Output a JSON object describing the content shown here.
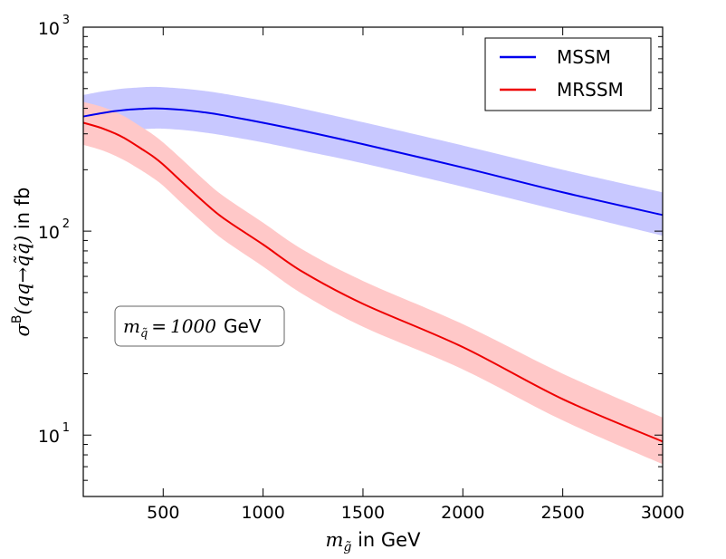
{
  "chart_data": {
    "type": "line",
    "xlabel_symbol": "m",
    "xlabel_subscript": "g̃",
    "xlabel_suffix": " in GeV",
    "ylabel_main": "σ",
    "ylabel_superscript": "B",
    "ylabel_process": "(qq→q̃q̃)",
    "ylabel_suffix": " in fb",
    "xlim": [
      100,
      3000
    ],
    "ylim": [
      5,
      1000
    ],
    "yscale": "log",
    "grid": false,
    "legend_position": "top-right",
    "x_ticks": [
      500,
      1000,
      1500,
      2000,
      2500,
      3000
    ],
    "x_tick_labels": [
      "500",
      "1000",
      "1500",
      "2000",
      "2500",
      "3000"
    ],
    "y_ticks": [
      10,
      100,
      1000
    ],
    "y_tick_labels": [
      {
        "base": "10",
        "exp": "1"
      },
      {
        "base": "10",
        "exp": "2"
      },
      {
        "base": "10",
        "exp": "3"
      }
    ],
    "annotation": {
      "symbol": "m",
      "subscript": "q̃",
      "equals": "=",
      "value": "1000",
      "unit": "GeV"
    },
    "x": [
      100,
      200,
      300,
      400,
      450,
      500,
      600,
      700,
      800,
      1000,
      1200,
      1500,
      2000,
      2500,
      3000
    ],
    "series": [
      {
        "name": "MSSM",
        "color": "#0000ee",
        "band_color": "#c8c8ff",
        "values": [
          365,
          380,
          392,
          398,
          400,
          399,
          393,
          383,
          370,
          340,
          310,
          267,
          205,
          155,
          120
        ],
        "lower": [
          285,
          300,
          310,
          316,
          318,
          318,
          313,
          305,
          295,
          272,
          248,
          215,
          165,
          125,
          95
        ],
        "upper": [
          465,
          485,
          500,
          508,
          510,
          508,
          500,
          488,
          472,
          436,
          398,
          342,
          263,
          200,
          155
        ]
      },
      {
        "name": "MRSSM",
        "color": "#ee0000",
        "band_color": "#ffc8c8",
        "values": [
          340,
          318,
          288,
          250,
          232,
          212,
          172,
          140,
          116,
          86,
          63,
          44,
          27,
          15,
          9.3
        ],
        "lower": [
          265,
          248,
          224,
          196,
          182,
          167,
          135,
          110,
          91,
          67,
          49,
          34,
          21,
          11.8,
          7.2
        ],
        "upper": [
          430,
          405,
          368,
          320,
          297,
          272,
          222,
          180,
          149,
          110,
          81,
          57,
          35,
          20,
          12.2
        ]
      }
    ]
  }
}
